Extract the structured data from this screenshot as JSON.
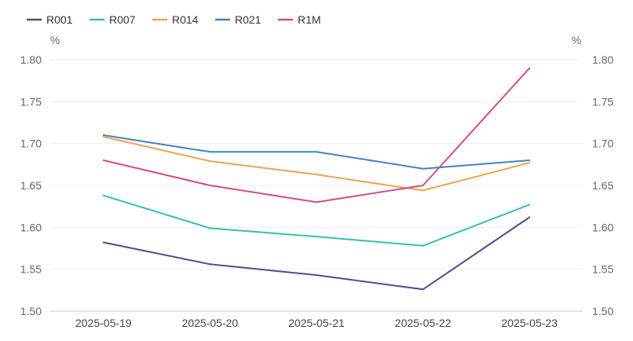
{
  "chart_data": {
    "type": "line",
    "categories": [
      "2025-05-19",
      "2025-05-20",
      "2025-05-21",
      "2025-05-22",
      "2025-05-23"
    ],
    "series": [
      {
        "name": "R001",
        "color": "#4a4e8c",
        "values": [
          1.582,
          1.556,
          1.543,
          1.526,
          1.612
        ]
      },
      {
        "name": "R007",
        "color": "#36c0ae",
        "values": [
          1.638,
          1.599,
          1.589,
          1.578,
          1.627
        ]
      },
      {
        "name": "R014",
        "color": "#eaa54f",
        "values": [
          1.708,
          1.679,
          1.663,
          1.644,
          1.677
        ]
      },
      {
        "name": "R021",
        "color": "#3f84c5",
        "values": [
          1.71,
          1.69,
          1.69,
          1.67,
          1.68
        ]
      },
      {
        "name": "R1M",
        "color": "#d24d8a",
        "values": [
          1.68,
          1.65,
          1.63,
          1.65,
          1.79
        ]
      }
    ],
    "y_unit_left": "%",
    "y_unit_right": "%",
    "ylim": [
      1.5,
      1.8
    ],
    "yticks": [
      "1.50",
      "1.55",
      "1.60",
      "1.65",
      "1.70",
      "1.75",
      "1.80"
    ],
    "legend_position": "top-left",
    "grid": true
  }
}
